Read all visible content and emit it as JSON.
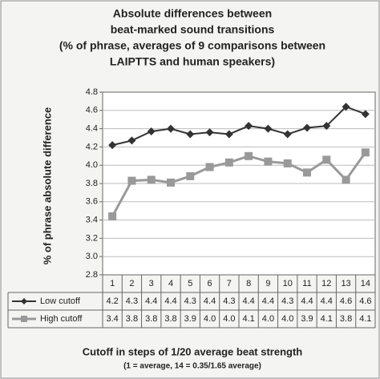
{
  "chart_data": {
    "type": "line",
    "title": [
      "Absolute differences between",
      "beat-marked sound transitions",
      "(% of phrase, averages of 9 comparisons between",
      "LAIPTTS and human speakers)"
    ],
    "ylabel": "% of phrase absolute difference",
    "xlabel": "Cutoff in steps of 1/20 average beat strength",
    "xnote": "(1 = average, 14 = 0.35/1.65 average)",
    "categories": [
      "1",
      "2",
      "3",
      "4",
      "5",
      "6",
      "7",
      "8",
      "9",
      "10",
      "11",
      "12",
      "13",
      "14"
    ],
    "series": [
      {
        "name": "Low cutoff",
        "color": "#333333",
        "marker": "diamond",
        "values": [
          4.22,
          4.27,
          4.37,
          4.4,
          4.34,
          4.36,
          4.34,
          4.43,
          4.4,
          4.34,
          4.41,
          4.43,
          4.64,
          4.56
        ],
        "value_labels": [
          "4.2",
          "4.3",
          "4.4",
          "4.4",
          "4.3",
          "4.4",
          "4.3",
          "4.4",
          "4.4",
          "4.3",
          "4.4",
          "4.4",
          "4.6",
          "4.6"
        ]
      },
      {
        "name": "High cutoff",
        "color": "#999999",
        "marker": "square",
        "values": [
          3.44,
          3.83,
          3.84,
          3.81,
          3.88,
          3.98,
          4.03,
          4.1,
          4.04,
          4.02,
          3.92,
          4.06,
          3.84,
          4.14
        ],
        "value_labels": [
          "3.4",
          "3.8",
          "3.8",
          "3.8",
          "3.9",
          "4.0",
          "4.0",
          "4.1",
          "4.0",
          "4.0",
          "3.9",
          "4.1",
          "3.8",
          "4.1"
        ]
      }
    ],
    "ylim": [
      2.8,
      4.8
    ],
    "yticks": [
      2.8,
      {
        "value": 3,
        "label": "3.0"
      },
      3.2,
      3.4,
      3.6,
      3.8,
      {
        "value": 4,
        "label": "4.0"
      },
      4.2,
      4.4,
      4.6,
      4.8
    ],
    "grid": true
  }
}
